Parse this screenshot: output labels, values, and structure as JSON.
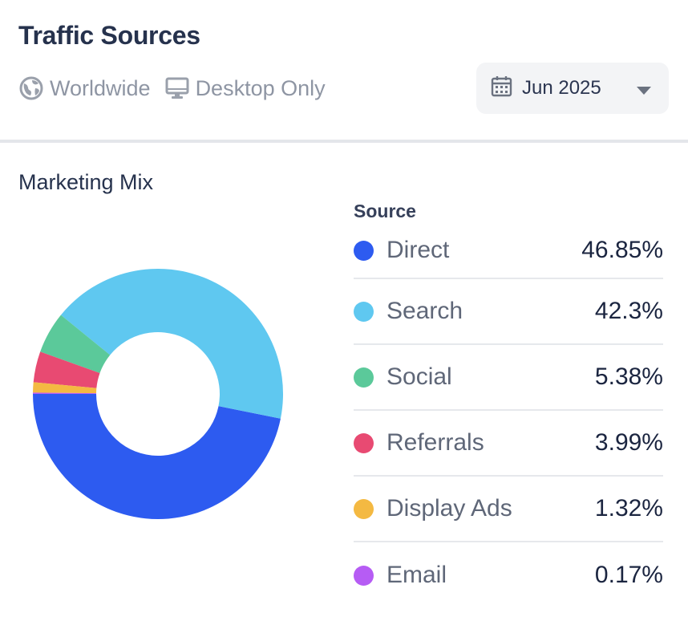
{
  "header": {
    "title": "Traffic Sources",
    "filters": {
      "region": {
        "label": "Worldwide",
        "icon": "globe-icon"
      },
      "device": {
        "label": "Desktop Only",
        "icon": "monitor-icon"
      }
    },
    "date_select": {
      "value": "Jun 2025",
      "icon": "calendar-icon",
      "caret_icon": "chevron-down-icon"
    }
  },
  "panel": {
    "subtitle": "Marketing Mix",
    "legend_header": "Source"
  },
  "chart_data": {
    "type": "pie",
    "title": "Marketing Mix",
    "legend_title": "Source",
    "legend_placement": "right",
    "donut": true,
    "categories": [
      "Direct",
      "Search",
      "Social",
      "Referrals",
      "Display Ads",
      "Email"
    ],
    "values": [
      46.85,
      42.3,
      5.38,
      3.99,
      1.32,
      0.17
    ],
    "value_labels": [
      "46.85%",
      "42.3%",
      "5.38%",
      "3.99%",
      "1.32%",
      "0.17%"
    ],
    "colors": [
      "#2d5bf0",
      "#5fc8f0",
      "#5bc99a",
      "#e84a72",
      "#f4b942",
      "#b65cf4"
    ]
  }
}
